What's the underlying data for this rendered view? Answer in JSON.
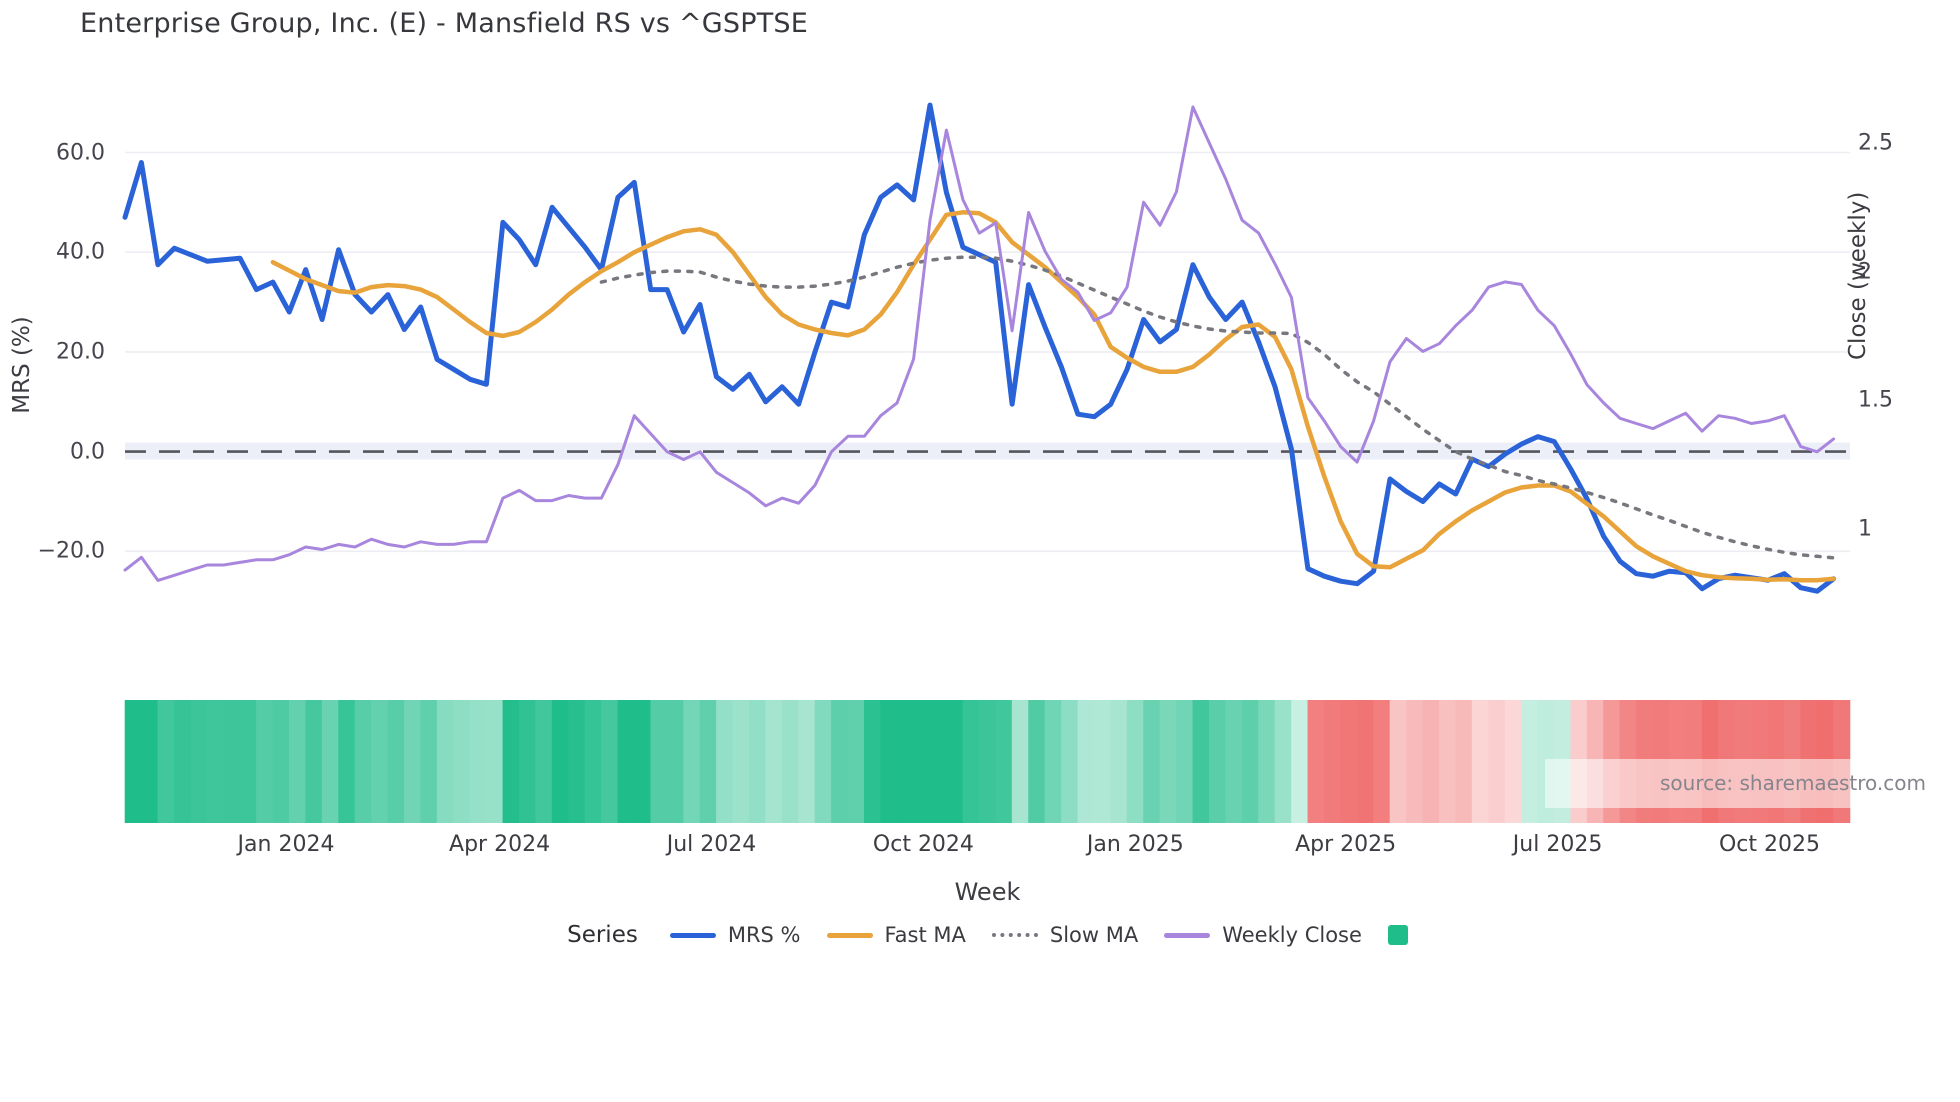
{
  "title": "Enterprise Group, Inc. (E) - Mansfield RS vs ^GSPTSE",
  "watermark": "source: sharemaestro.com",
  "axes": {
    "left": {
      "label": "MRS (%)",
      "ticks": [
        {
          "label": "60.0",
          "value": 60
        },
        {
          "label": "40.0",
          "value": 40
        },
        {
          "label": "20.0",
          "value": 20
        },
        {
          "label": "0.0",
          "value": 0
        },
        {
          "label": "−20.0",
          "value": -20
        }
      ]
    },
    "right": {
      "label": "Close (weekly)",
      "ticks": [
        {
          "label": "2.5",
          "value": 2.5
        },
        {
          "label": "2",
          "value": 2
        },
        {
          "label": "1.5",
          "value": 1.5
        },
        {
          "label": "1",
          "value": 1
        }
      ]
    },
    "x": {
      "label": "Week",
      "ticks": [
        {
          "label": "Jan 2024",
          "week": 9.8
        },
        {
          "label": "Apr 2024",
          "week": 22.8
        },
        {
          "label": "Jul 2024",
          "week": 35.7
        },
        {
          "label": "Oct 2024",
          "week": 48.6
        },
        {
          "label": "Jan 2025",
          "week": 61.5
        },
        {
          "label": "Apr 2025",
          "week": 74.3
        },
        {
          "label": "Jul 2025",
          "week": 87.2
        },
        {
          "label": "Oct 2025",
          "week": 100.1
        }
      ]
    }
  },
  "legend": {
    "title": "Series",
    "items": [
      {
        "label": "MRS %",
        "swatch": "line",
        "color": "#2a62d8"
      },
      {
        "label": "Fast MA",
        "swatch": "line",
        "color": "#e8a33a"
      },
      {
        "label": "Slow MA",
        "swatch": "dotted",
        "color": "#77777d"
      },
      {
        "label": "Weekly Close",
        "swatch": "line",
        "color": "#a886dd"
      },
      {
        "label": "",
        "swatch": "square",
        "color": "#1fbd8a"
      }
    ]
  },
  "colors": {
    "mrs": "#2a62d8",
    "fast": "#e8a33a",
    "slow": "#77777d",
    "close": "#a886dd",
    "grid": "#ededf3",
    "zero_line": "#55555e",
    "zero_band": "#edeff8",
    "heat_positive": "#1fbd8a",
    "heat_negative": "#f06e6e",
    "text": "#3c3c42"
  },
  "chart_data": {
    "type": "line",
    "title": "Enterprise Group, Inc. (E) - Mansfield RS vs ^GSPTSE",
    "xlabel": "Week",
    "ylabel_left": "MRS (%)",
    "ylabel_right": "Close (weekly)",
    "x_unit": "week_index",
    "weeks": 105,
    "x_range_weeks": [
      0,
      104
    ],
    "left_axis_ticks": [
      60,
      40,
      20,
      0,
      -20
    ],
    "right_axis_ticks": [
      2.5,
      2,
      1.5,
      1
    ],
    "zero_line": true,
    "grid": true,
    "legend_position": "bottom",
    "series": [
      {
        "name": "MRS %",
        "axis": "left",
        "style": "solid",
        "color": "#2a62d8",
        "width": 5,
        "values": [
          47,
          58,
          37.5,
          40.8,
          39.5,
          38.2,
          38.5,
          38.8,
          32.5,
          34,
          28,
          36.5,
          26.5,
          40.5,
          31.5,
          28,
          31.5,
          24.5,
          29,
          18.5,
          16.5,
          14.5,
          13.5,
          46,
          42.5,
          37.5,
          49,
          45,
          41,
          36.5,
          51,
          54,
          32.5,
          32.5,
          24,
          29.5,
          15,
          12.5,
          15.5,
          10,
          13,
          9.5,
          20,
          30,
          29,
          43.5,
          51,
          53.5,
          50.5,
          69.5,
          52,
          41,
          39.5,
          38,
          9.5,
          33.5,
          25,
          17,
          7.5,
          7,
          9.5,
          16.5,
          26.5,
          22,
          24.5,
          37.5,
          31,
          26.5,
          30,
          22,
          13,
          0.5,
          -23.5,
          -25,
          -26,
          -26.5,
          -24,
          -5.5,
          -8,
          -10,
          -6.5,
          -8.5,
          -1.5,
          -3,
          -0.5,
          1.5,
          3,
          2,
          -3.5,
          -9.5,
          -17,
          -22,
          -24.5,
          -25,
          -24,
          -24.3,
          -27.5,
          -25.5,
          -24.8,
          -25.3,
          -25.8,
          -24.5,
          -27.3,
          -28,
          -25.5
        ]
      },
      {
        "name": "Fast MA",
        "axis": "left",
        "style": "solid",
        "color": "#e8a33a",
        "width": 4.5,
        "values": [
          null,
          null,
          null,
          null,
          null,
          null,
          null,
          null,
          null,
          38,
          36.3,
          34.6,
          33.4,
          32.2,
          31.9,
          33,
          33.4,
          33.2,
          32.5,
          31,
          28.5,
          26,
          23.8,
          23.2,
          24,
          26,
          28.5,
          31.5,
          34,
          36.2,
          38,
          40,
          41.5,
          43,
          44.2,
          44.6,
          43.5,
          40,
          35.5,
          31,
          27.5,
          25.5,
          24.5,
          23.8,
          23.3,
          24.5,
          27.5,
          32,
          37.5,
          42.5,
          47.5,
          48,
          47.8,
          46,
          42,
          39.5,
          37,
          34,
          31,
          27.5,
          21,
          18.8,
          17,
          16,
          16,
          17,
          19.5,
          22.5,
          25,
          25.5,
          23,
          16.5,
          5,
          -5,
          -14,
          -20.5,
          -23,
          -23.2,
          -21.5,
          -19.8,
          -16.5,
          -14,
          -11.8,
          -10,
          -8.2,
          -7.2,
          -6.8,
          -6.8,
          -8,
          -10.5,
          -13,
          -16,
          -19,
          -21,
          -22.5,
          -24,
          -24.8,
          -25.2,
          -25.4,
          -25.5,
          -25.7,
          -25.6,
          -25.8,
          -25.8,
          -25.5
        ]
      },
      {
        "name": "Slow MA",
        "axis": "left",
        "style": "dotted",
        "color": "#77777d",
        "width": 3.5,
        "values": [
          null,
          null,
          null,
          null,
          null,
          null,
          null,
          null,
          null,
          null,
          null,
          null,
          null,
          null,
          null,
          null,
          null,
          null,
          null,
          null,
          null,
          null,
          null,
          null,
          null,
          null,
          null,
          null,
          null,
          34,
          34.8,
          35.4,
          35.9,
          36.2,
          36.2,
          36,
          35,
          34.2,
          33.6,
          33.2,
          33,
          33,
          33.2,
          33.6,
          34.2,
          35,
          36,
          37,
          37.8,
          38.4,
          38.8,
          39,
          39,
          38.8,
          38.2,
          37.4,
          36.4,
          35.2,
          33.8,
          32.4,
          31,
          29.6,
          28.2,
          27,
          26,
          25.2,
          24.6,
          24.2,
          24,
          23.8,
          23.8,
          23.7,
          21.9,
          19.5,
          16.5,
          14,
          12,
          9.5,
          7,
          4.5,
          2.2,
          0,
          -1.5,
          -2.7,
          -4,
          -4.8,
          -5.8,
          -6.5,
          -7.3,
          -8.2,
          -9.2,
          -10.3,
          -11.5,
          -12.7,
          -13.8,
          -15,
          -16.2,
          -17.2,
          -18.1,
          -18.9,
          -19.6,
          -20.2,
          -20.7,
          -21,
          -21.3
        ]
      },
      {
        "name": "Weekly Close",
        "axis": "right",
        "style": "solid",
        "color": "#a886dd",
        "width": 3,
        "values": [
          0.84,
          0.89,
          0.8,
          0.82,
          0.84,
          0.86,
          0.86,
          0.87,
          0.88,
          0.88,
          0.9,
          0.93,
          0.92,
          0.94,
          0.93,
          0.96,
          0.94,
          0.93,
          0.95,
          0.94,
          0.94,
          0.95,
          0.95,
          1.12,
          1.15,
          1.11,
          1.11,
          1.13,
          1.12,
          1.12,
          1.25,
          1.44,
          1.37,
          1.3,
          1.27,
          1.3,
          1.22,
          1.18,
          1.14,
          1.09,
          1.12,
          1.1,
          1.17,
          1.3,
          1.36,
          1.36,
          1.44,
          1.49,
          1.66,
          2.2,
          2.55,
          2.28,
          2.15,
          2.19,
          1.77,
          2.23,
          2.08,
          1.97,
          1.92,
          1.81,
          1.84,
          1.94,
          2.27,
          2.18,
          2.31,
          2.64,
          2.5,
          2.36,
          2.2,
          2.15,
          2.03,
          1.9,
          1.51,
          1.42,
          1.32,
          1.26,
          1.42,
          1.65,
          1.74,
          1.69,
          1.72,
          1.79,
          1.85,
          1.94,
          1.96,
          1.95,
          1.85,
          1.79,
          1.68,
          1.56,
          1.49,
          1.43,
          1.41,
          1.39,
          1.42,
          1.45,
          1.38,
          1.44,
          1.43,
          1.41,
          1.42,
          1.44,
          1.32,
          1.3,
          1.35
        ]
      }
    ],
    "heatmap": {
      "derived_from": "MRS %",
      "positive_color": "#1fbd8a",
      "negative_color": "#f06e6e",
      "description": "weekly strip below chart; green intensity tracks positive MRS, red intensity tracks negative MRS"
    }
  }
}
